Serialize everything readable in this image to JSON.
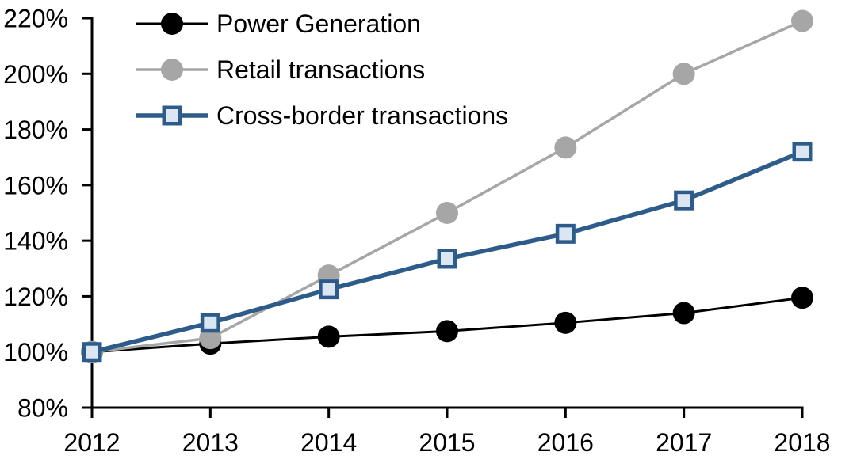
{
  "chart_data": {
    "type": "line",
    "title": "",
    "xlabel": "",
    "ylabel": "",
    "categories": [
      "2012",
      "2013",
      "2014",
      "2015",
      "2016",
      "2017",
      "2018"
    ],
    "series": [
      {
        "name": "Power Generation",
        "values": [
          100,
          103,
          105.5,
          107.5,
          110.5,
          114,
          119.5
        ],
        "color": "#000000",
        "marker": "circle",
        "marker_fill": "#000000",
        "line_width": 3
      },
      {
        "name": "Retail transactions",
        "values": [
          100,
          105,
          127.5,
          150,
          173.5,
          200,
          219
        ],
        "color": "#a6a6a6",
        "marker": "circle",
        "marker_fill": "#a6a6a6",
        "line_width": 3.5
      },
      {
        "name": "Cross-border transactions",
        "values": [
          100,
          110.5,
          122.5,
          133.5,
          142.5,
          154.5,
          172
        ],
        "color": "#2e5c8a",
        "marker": "square",
        "marker_fill": "#dce6f2",
        "line_width": 5.5
      }
    ],
    "ylim": [
      80,
      220
    ],
    "ytick_step": 20,
    "yticks": [
      "80%",
      "100%",
      "120%",
      "140%",
      "160%",
      "180%",
      "200%",
      "220%"
    ],
    "axis_color": "#000000",
    "grid": false,
    "legend_position": "top-left"
  }
}
